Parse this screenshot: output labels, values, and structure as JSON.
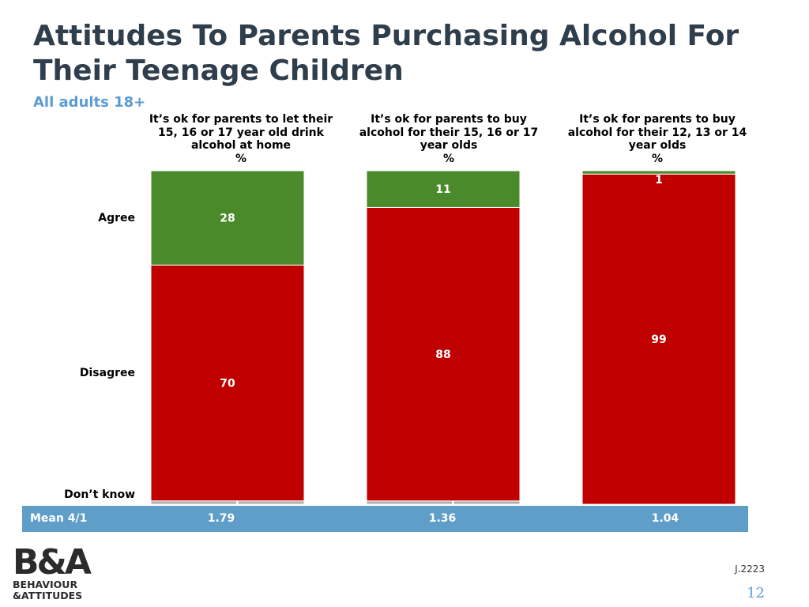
{
  "title": "Attitudes To Parents Purchasing Alcohol For Their Teenage Children",
  "subtitle": "All adults 18+",
  "columns": [
    {
      "label": "It’s ok for parents to let their 15, 16 or 17 year old drink alcohol at home",
      "unit": "%",
      "mean": "1.79"
    },
    {
      "label": "It’s ok for parents to buy alcohol for their 15, 16 or 17 year olds",
      "unit": "%",
      "mean": "1.36"
    },
    {
      "label": "It’s ok for parents to buy alcohol for their 12, 13 or 14 year olds",
      "unit": "%",
      "mean": "1.04"
    }
  ],
  "row_labels": {
    "agree": "Agree",
    "disagree": "Disagree",
    "dont_know": "Don’t know"
  },
  "mean_label": "Mean 4/1",
  "footer": {
    "code": "J.2223",
    "page": "12"
  },
  "logo": {
    "line1": "B&A",
    "line2": "BEHAVIOUR",
    "line3": "&ATTITUDES"
  },
  "colors": {
    "agree": "#4a8a2a",
    "disagree": "#c00000",
    "dont_know": "#b0b0b0",
    "mean_bar": "#5f9ec8",
    "title": "#2f3e4c",
    "subtitle": "#5b9bd5"
  },
  "chart_data": {
    "type": "bar",
    "stacked": true,
    "unit": "%",
    "categories": [
      "It’s ok for parents to let their 15, 16 or 17 year old drink alcohol at home",
      "It’s ok for parents to buy alcohol for their 15, 16 or 17 year olds",
      "It’s ok for parents to buy alcohol for their 12, 13 or 14 year olds"
    ],
    "series": [
      {
        "name": "Don’t know",
        "values": [
          1,
          1,
          0
        ]
      },
      {
        "name": "Disagree",
        "values": [
          70,
          88,
          99
        ]
      },
      {
        "name": "Agree",
        "values": [
          28,
          11,
          1
        ]
      }
    ],
    "means": [
      1.79,
      1.36,
      1.04
    ],
    "ylim": [
      0,
      100
    ]
  }
}
